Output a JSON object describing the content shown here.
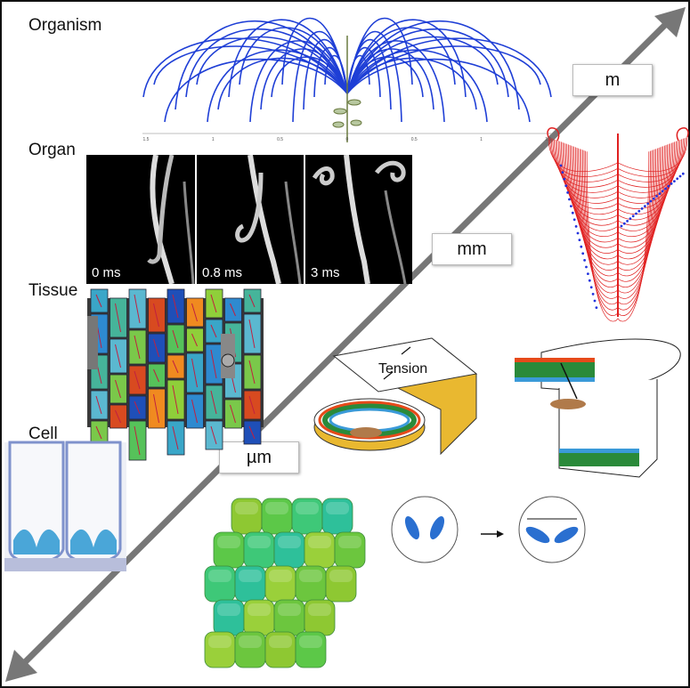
{
  "levels": {
    "organism": "Organism",
    "organ": "Organ",
    "tissue": "Tissue",
    "cell": "Cell"
  },
  "scales": {
    "m": "m",
    "mm": "mm",
    "um": "µm"
  },
  "organ_frames": [
    "0 ms",
    "0.8 ms",
    "3 ms"
  ],
  "organism_axis_ticks": [
    "1.5",
    "1",
    "0.5",
    "0",
    "0.5",
    "1",
    "1.5"
  ],
  "annotation": {
    "tension": "Tension"
  },
  "colors": {
    "organism_curves": "#1f3fd6",
    "arrow": "#777777",
    "model_lines": "#e02020",
    "model_points": "#2233dd"
  }
}
